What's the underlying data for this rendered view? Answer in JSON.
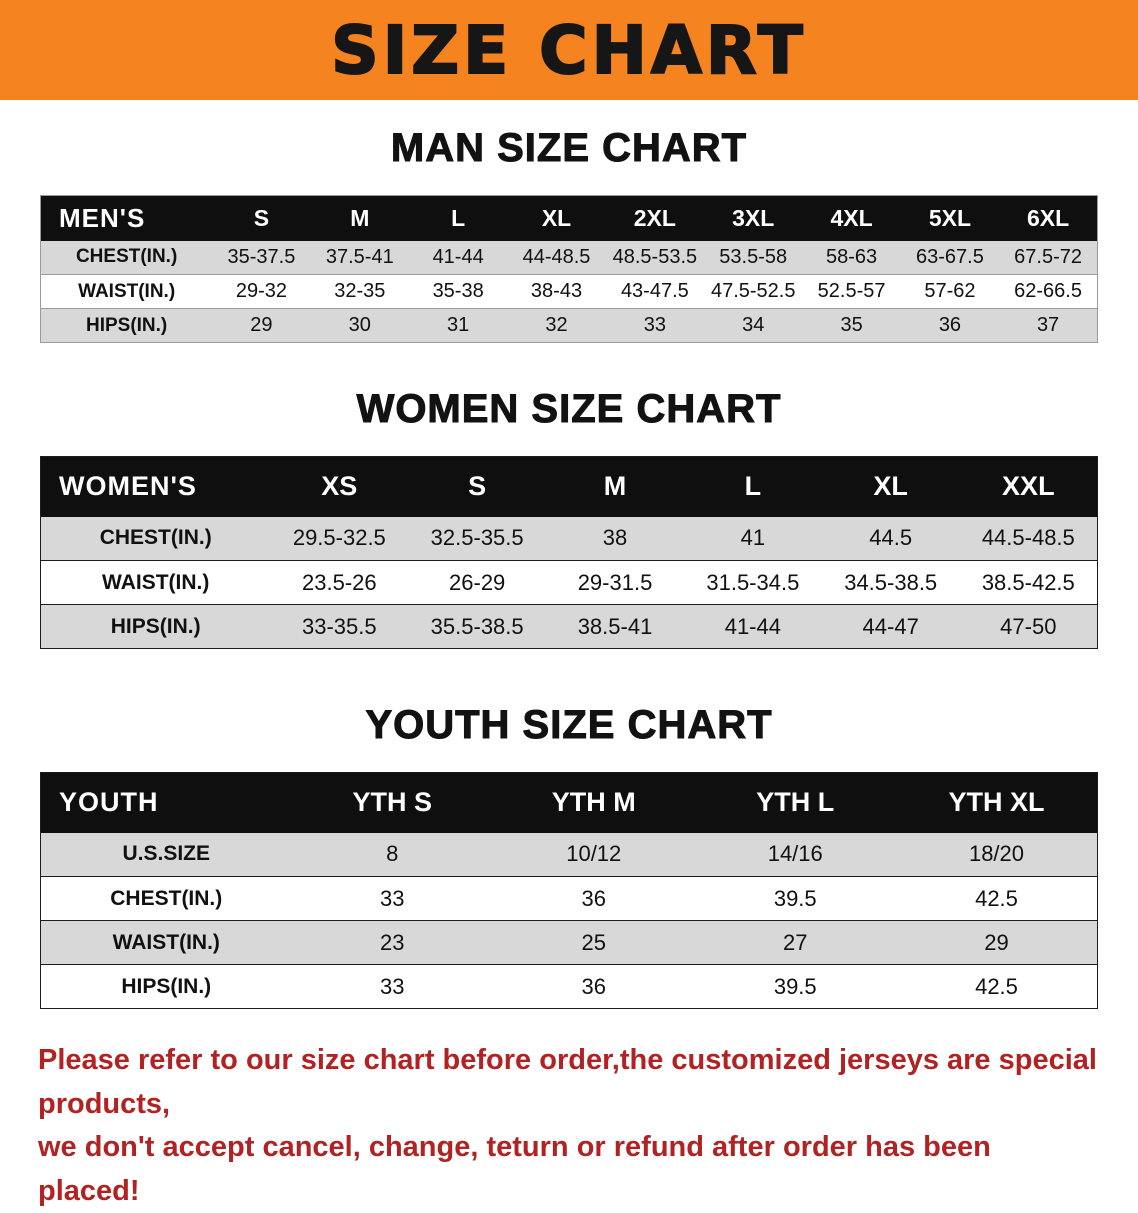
{
  "banner": {
    "title": "SIZE CHART",
    "bg_color": "#f5831f"
  },
  "sections": [
    {
      "heading": "MAN SIZE CHART",
      "table": {
        "header": [
          "MEN'S",
          "S",
          "M",
          "L",
          "XL",
          "2XL",
          "3XL",
          "4XL",
          "5XL",
          "6XL"
        ],
        "rows": [
          [
            "CHEST(IN.)",
            "35-37.5",
            "37.5-41",
            "41-44",
            "44-48.5",
            "48.5-53.5",
            "53.5-58",
            "58-63",
            "63-67.5",
            "67.5-72"
          ],
          [
            "WAIST(IN.)",
            "29-32",
            "32-35",
            "35-38",
            "38-43",
            "43-47.5",
            "47.5-52.5",
            "52.5-57",
            "57-62",
            "62-66.5"
          ],
          [
            "HIPS(IN.)",
            "29",
            "30",
            "31",
            "32",
            "33",
            "34",
            "35",
            "36",
            "37"
          ]
        ]
      }
    },
    {
      "heading": "WOMEN SIZE CHART",
      "table": {
        "header": [
          "WOMEN'S",
          "XS",
          "S",
          "M",
          "L",
          "XL",
          "XXL"
        ],
        "rows": [
          [
            "CHEST(IN.)",
            "29.5-32.5",
            "32.5-35.5",
            "38",
            "41",
            "44.5",
            "44.5-48.5"
          ],
          [
            "WAIST(IN.)",
            "23.5-26",
            "26-29",
            "29-31.5",
            "31.5-34.5",
            "34.5-38.5",
            "38.5-42.5"
          ],
          [
            "HIPS(IN.)",
            "33-35.5",
            "35.5-38.5",
            "38.5-41",
            "41-44",
            "44-47",
            "47-50"
          ]
        ]
      }
    },
    {
      "heading": "YOUTH SIZE CHART",
      "table": {
        "header": [
          "YOUTH",
          "YTH S",
          "YTH M",
          "YTH L",
          "YTH XL"
        ],
        "rows": [
          [
            "U.S.SIZE",
            "8",
            "10/12",
            "14/16",
            "18/20"
          ],
          [
            "CHEST(IN.)",
            "33",
            "36",
            "39.5",
            "42.5"
          ],
          [
            "WAIST(IN.)",
            "23",
            "25",
            "27",
            "29"
          ],
          [
            "HIPS(IN.)",
            "33",
            "36",
            "39.5",
            "42.5"
          ]
        ]
      }
    }
  ],
  "disclaimer": {
    "line1": "Please refer to our size chart before order,the customized jerseys are special products,",
    "line2": "we don't accept cancel, change, teturn or refund after order has been placed!",
    "color": "#b22222"
  }
}
